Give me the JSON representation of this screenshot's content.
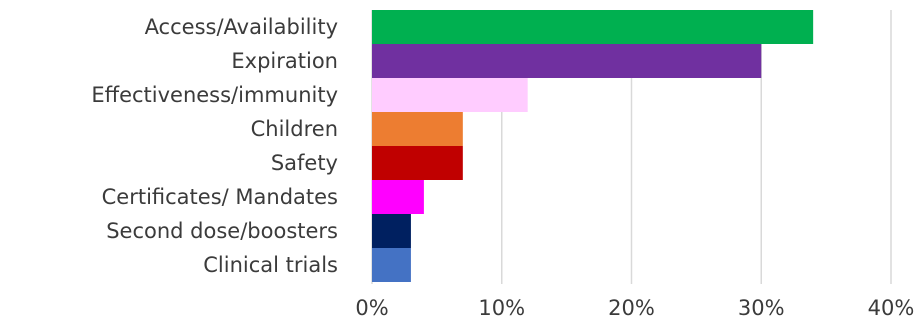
{
  "chart_data": {
    "type": "bar",
    "orientation": "horizontal",
    "categories": [
      "Access/Availability",
      "Expiration",
      "Effectiveness/immunity",
      "Children",
      "Safety",
      "Certificates/ Mandates",
      "Second dose/boosters",
      "Clinical trials"
    ],
    "values": [
      34,
      30,
      12,
      7,
      7,
      4,
      3,
      3
    ],
    "colors": [
      "#00b050",
      "#7030a0",
      "#ffccff",
      "#ed7d31",
      "#c00000",
      "#ff00ff",
      "#002060",
      "#4472c4"
    ],
    "xlim": [
      0,
      40
    ],
    "xticks": [
      0,
      10,
      20,
      30,
      40
    ],
    "xtick_labels": [
      "0%",
      "10%",
      "20%",
      "30%",
      "40%"
    ],
    "grid": "vertical",
    "legend": "none"
  }
}
